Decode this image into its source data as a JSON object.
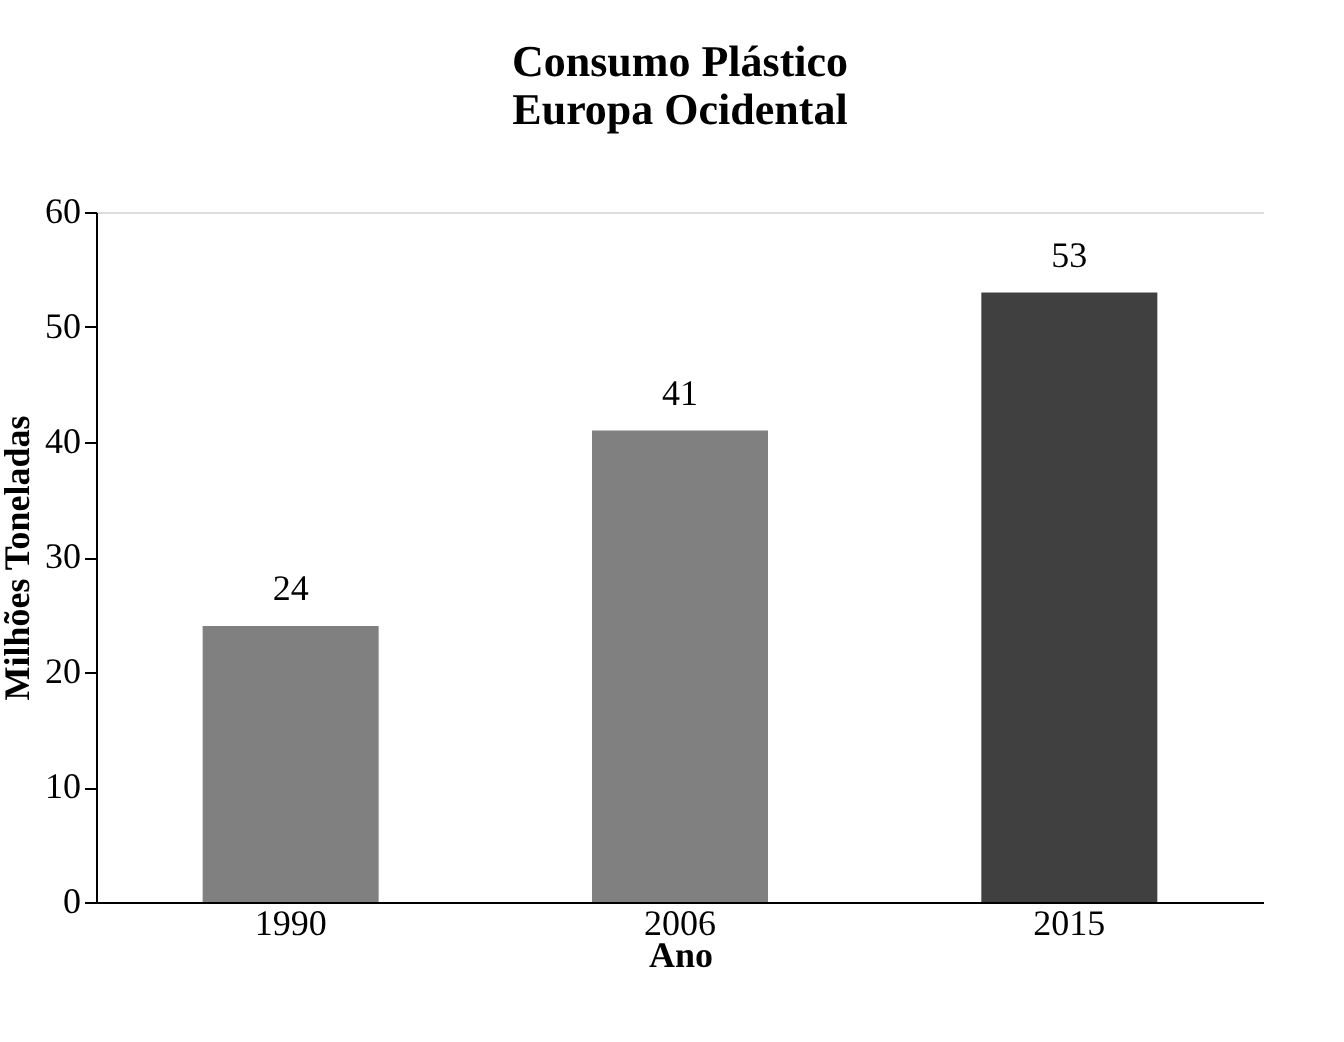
{
  "chart_data": {
    "type": "bar",
    "title": "Consumo Plástico\nEuropa Ocidental",
    "xlabel": "Ano",
    "ylabel": "Milhões Toneladas",
    "categories": [
      "1990",
      "2006",
      "2015"
    ],
    "values": [
      24,
      41,
      53
    ],
    "colors": [
      "#808080",
      "#808080",
      "#404040"
    ],
    "ylim": [
      0,
      60
    ],
    "yticks": [
      0,
      10,
      20,
      30,
      40,
      50,
      60
    ],
    "grid": false,
    "data_labels": true
  }
}
